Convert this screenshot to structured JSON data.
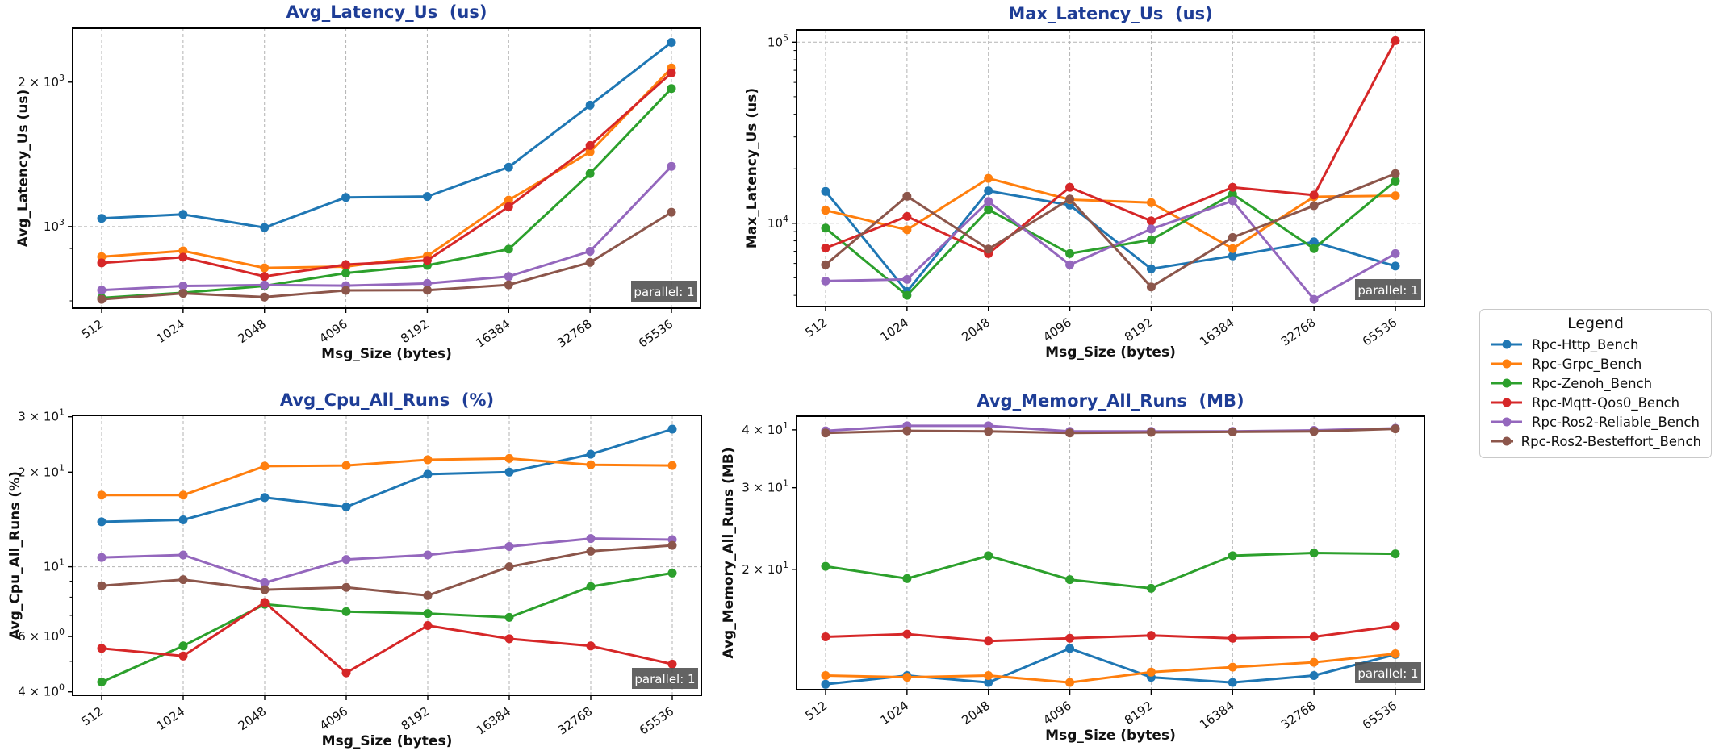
{
  "styles": {
    "title_color": "#1e3d96",
    "grid_color": "#b3b3b3",
    "badge_bg": "#4d4d4d",
    "badge_fg": "#ffffff",
    "series_colors": {
      "blue": "#1f77b4",
      "orange": "#ff7f0e",
      "green": "#2ca02c",
      "red": "#d62728",
      "purple": "#9467bd",
      "brown": "#8c564b"
    }
  },
  "legend": {
    "title": "Legend",
    "entries": [
      {
        "label": "Rpc-Http_Bench",
        "color": "#1f77b4"
      },
      {
        "label": "Rpc-Grpc_Bench",
        "color": "#ff7f0e"
      },
      {
        "label": "Rpc-Zenoh_Bench",
        "color": "#2ca02c"
      },
      {
        "label": "Rpc-Mqtt-Qos0_Bench",
        "color": "#d62728"
      },
      {
        "label": "Rpc-Ros2-Reliable_Bench",
        "color": "#9467bd"
      },
      {
        "label": "Rpc-Ros2-Besteffort_Bench",
        "color": "#8c564b"
      }
    ]
  },
  "chart_data": [
    {
      "id": "avg-latency-us",
      "type": "line",
      "yscale": "log",
      "title": "Avg_Latency_Us  (us)",
      "xlabel": "Msg_Size (bytes)",
      "ylabel": "Avg_Latency_Us (us)",
      "badge": "parallel: 1",
      "categories": [
        512,
        1024,
        2048,
        4096,
        8192,
        16384,
        32768,
        65536
      ],
      "ylim": [
        676,
        2590
      ],
      "yticks": [
        {
          "value": 2000,
          "base": "2 × 10",
          "exp": "3"
        },
        {
          "value": 1000,
          "base": "10",
          "exp": "3"
        }
      ],
      "grid_y": [
        1000
      ],
      "series": [
        {
          "name": "Rpc-Http_Bench",
          "color": "#1f77b4",
          "values": [
            1040,
            1060,
            995,
            1150,
            1155,
            1330,
            1790,
            2420
          ]
        },
        {
          "name": "Rpc-Grpc_Bench",
          "color": "#ff7f0e",
          "values": [
            865,
            890,
            820,
            825,
            868,
            1135,
            1430,
            2140
          ]
        },
        {
          "name": "Rpc-Zenoh_Bench",
          "color": "#2ca02c",
          "values": [
            710,
            728,
            752,
            800,
            830,
            897,
            1290,
            1940
          ]
        },
        {
          "name": "Rpc-Mqtt-Qos0_Bench",
          "color": "#d62728",
          "values": [
            840,
            863,
            787,
            833,
            850,
            1100,
            1475,
            2090
          ]
        },
        {
          "name": "Rpc-Ros2-Reliable_Bench",
          "color": "#9467bd",
          "values": [
            737,
            752,
            755,
            753,
            761,
            787,
            888,
            1335
          ]
        },
        {
          "name": "Rpc-Ros2-Besteffort_Bench",
          "color": "#8c564b",
          "values": [
            705,
            726,
            713,
            736,
            737,
            756,
            842,
            1071
          ]
        }
      ]
    },
    {
      "id": "max-latency-us",
      "type": "line",
      "yscale": "log",
      "title": "Max_Latency_Us  (us)",
      "xlabel": "Msg_Size (bytes)",
      "ylabel": "Max_Latency_Us (us)",
      "badge": "parallel: 1",
      "categories": [
        512,
        1024,
        2048,
        4096,
        8192,
        16384,
        32768,
        65536
      ],
      "ylim": [
        3470,
        117000
      ],
      "yticks": [
        {
          "value": 100000,
          "base": "10",
          "exp": "5"
        },
        {
          "value": 10000,
          "base": "10",
          "exp": "4"
        }
      ],
      "grid_y": [
        100000,
        10000
      ],
      "series": [
        {
          "name": "Rpc-Http_Bench",
          "color": "#1f77b4",
          "values": [
            15000,
            4200,
            15100,
            12600,
            5600,
            6600,
            7900,
            5800
          ]
        },
        {
          "name": "Rpc-Grpc_Bench",
          "color": "#ff7f0e",
          "values": [
            11800,
            9200,
            17700,
            13500,
            13000,
            7250,
            14000,
            14200
          ]
        },
        {
          "name": "Rpc-Zenoh_Bench",
          "color": "#2ca02c",
          "values": [
            9400,
            4000,
            11900,
            6800,
            8100,
            14500,
            7250,
            17100
          ]
        },
        {
          "name": "Rpc-Mqtt-Qos0_Bench",
          "color": "#d62728",
          "values": [
            7300,
            10900,
            6800,
            15800,
            10300,
            15800,
            14300,
            102000
          ]
        },
        {
          "name": "Rpc-Ros2-Reliable_Bench",
          "color": "#9467bd",
          "values": [
            4800,
            4900,
            13200,
            5900,
            9300,
            13300,
            3800,
            6800
          ]
        },
        {
          "name": "Rpc-Ros2-Besteffort_Bench",
          "color": "#8c564b",
          "values": [
            5900,
            14100,
            7200,
            13600,
            4450,
            8350,
            12500,
            18800
          ]
        }
      ]
    },
    {
      "id": "avg-cpu-all-runs",
      "type": "line",
      "yscale": "log",
      "title": "Avg_Cpu_All_Runs  (%)",
      "xlabel": "Msg_Size (bytes)",
      "ylabel": "Avg_Cpu_All_Runs (%)",
      "badge": "parallel: 1",
      "categories": [
        512,
        1024,
        2048,
        4096,
        8192,
        16384,
        32768,
        65536
      ],
      "ylim": [
        3.9,
        30.3
      ],
      "yticks": [
        {
          "value": 30,
          "base": "3 × 10",
          "exp": "1"
        },
        {
          "value": 20,
          "base": "2 × 10",
          "exp": "1"
        },
        {
          "value": 10,
          "base": "10",
          "exp": "1"
        },
        {
          "value": 6,
          "base": "6 × 10",
          "exp": "0"
        },
        {
          "value": 4,
          "base": "4 × 10",
          "exp": "0"
        }
      ],
      "grid_y": [
        10
      ],
      "series": [
        {
          "name": "Rpc-Http_Bench",
          "color": "#1f77b4",
          "values": [
            13.9,
            14.1,
            16.6,
            15.5,
            19.7,
            20.0,
            22.8,
            27.4
          ]
        },
        {
          "name": "Rpc-Grpc_Bench",
          "color": "#ff7f0e",
          "values": [
            16.9,
            16.9,
            20.9,
            21.0,
            21.9,
            22.1,
            21.1,
            21.0
          ]
        },
        {
          "name": "Rpc-Zenoh_Bench",
          "color": "#2ca02c",
          "values": [
            4.3,
            5.6,
            7.6,
            7.2,
            7.1,
            6.9,
            8.65,
            9.55
          ]
        },
        {
          "name": "Rpc-Mqtt-Qos0_Bench",
          "color": "#d62728",
          "values": [
            5.5,
            5.2,
            7.7,
            4.6,
            6.5,
            5.9,
            5.6,
            4.9
          ]
        },
        {
          "name": "Rpc-Ros2-Reliable_Bench",
          "color": "#9467bd",
          "values": [
            10.7,
            10.9,
            8.9,
            10.55,
            10.9,
            11.6,
            12.3,
            12.2
          ]
        },
        {
          "name": "Rpc-Ros2-Besteffort_Bench",
          "color": "#8c564b",
          "values": [
            8.7,
            9.1,
            8.45,
            8.6,
            8.1,
            10.0,
            11.2,
            11.7
          ]
        }
      ]
    },
    {
      "id": "avg-memory-all-runs",
      "type": "line",
      "yscale": "log",
      "title": "Avg_Memory_All_Runs  (MB)",
      "xlabel": "Msg_Size (bytes)",
      "ylabel": "Avg_Memory_All_Runs (MB)",
      "badge": "parallel: 1",
      "categories": [
        512,
        1024,
        2048,
        4096,
        8192,
        16384,
        32768,
        65536
      ],
      "ylim": [
        11.0,
        42.8
      ],
      "yticks": [
        {
          "value": 40,
          "base": "4 × 10",
          "exp": "1"
        },
        {
          "value": 30,
          "base": "3 × 10",
          "exp": "1"
        },
        {
          "value": 20,
          "base": "2 × 10",
          "exp": "1"
        }
      ],
      "grid_y": [],
      "series": [
        {
          "name": "Rpc-Http_Bench",
          "color": "#1f77b4",
          "values": [
            11.3,
            11.8,
            11.4,
            13.5,
            11.7,
            11.4,
            11.8,
            13.1
          ]
        },
        {
          "name": "Rpc-Grpc_Bench",
          "color": "#ff7f0e",
          "values": [
            11.8,
            11.7,
            11.8,
            11.4,
            12.0,
            12.3,
            12.6,
            13.15
          ]
        },
        {
          "name": "Rpc-Zenoh_Bench",
          "color": "#2ca02c",
          "values": [
            20.3,
            19.1,
            21.4,
            19.0,
            18.2,
            21.4,
            21.7,
            21.6
          ]
        },
        {
          "name": "Rpc-Mqtt-Qos0_Bench",
          "color": "#d62728",
          "values": [
            14.3,
            14.5,
            14.0,
            14.2,
            14.4,
            14.2,
            14.3,
            15.1
          ]
        },
        {
          "name": "Rpc-Ros2-Reliable_Bench",
          "color": "#9467bd",
          "values": [
            39.8,
            40.8,
            40.8,
            39.7,
            39.7,
            39.7,
            39.9,
            40.3
          ]
        },
        {
          "name": "Rpc-Ros2-Besteffort_Bench",
          "color": "#8c564b",
          "values": [
            39.4,
            39.8,
            39.7,
            39.4,
            39.5,
            39.6,
            39.7,
            40.2
          ]
        }
      ]
    }
  ]
}
